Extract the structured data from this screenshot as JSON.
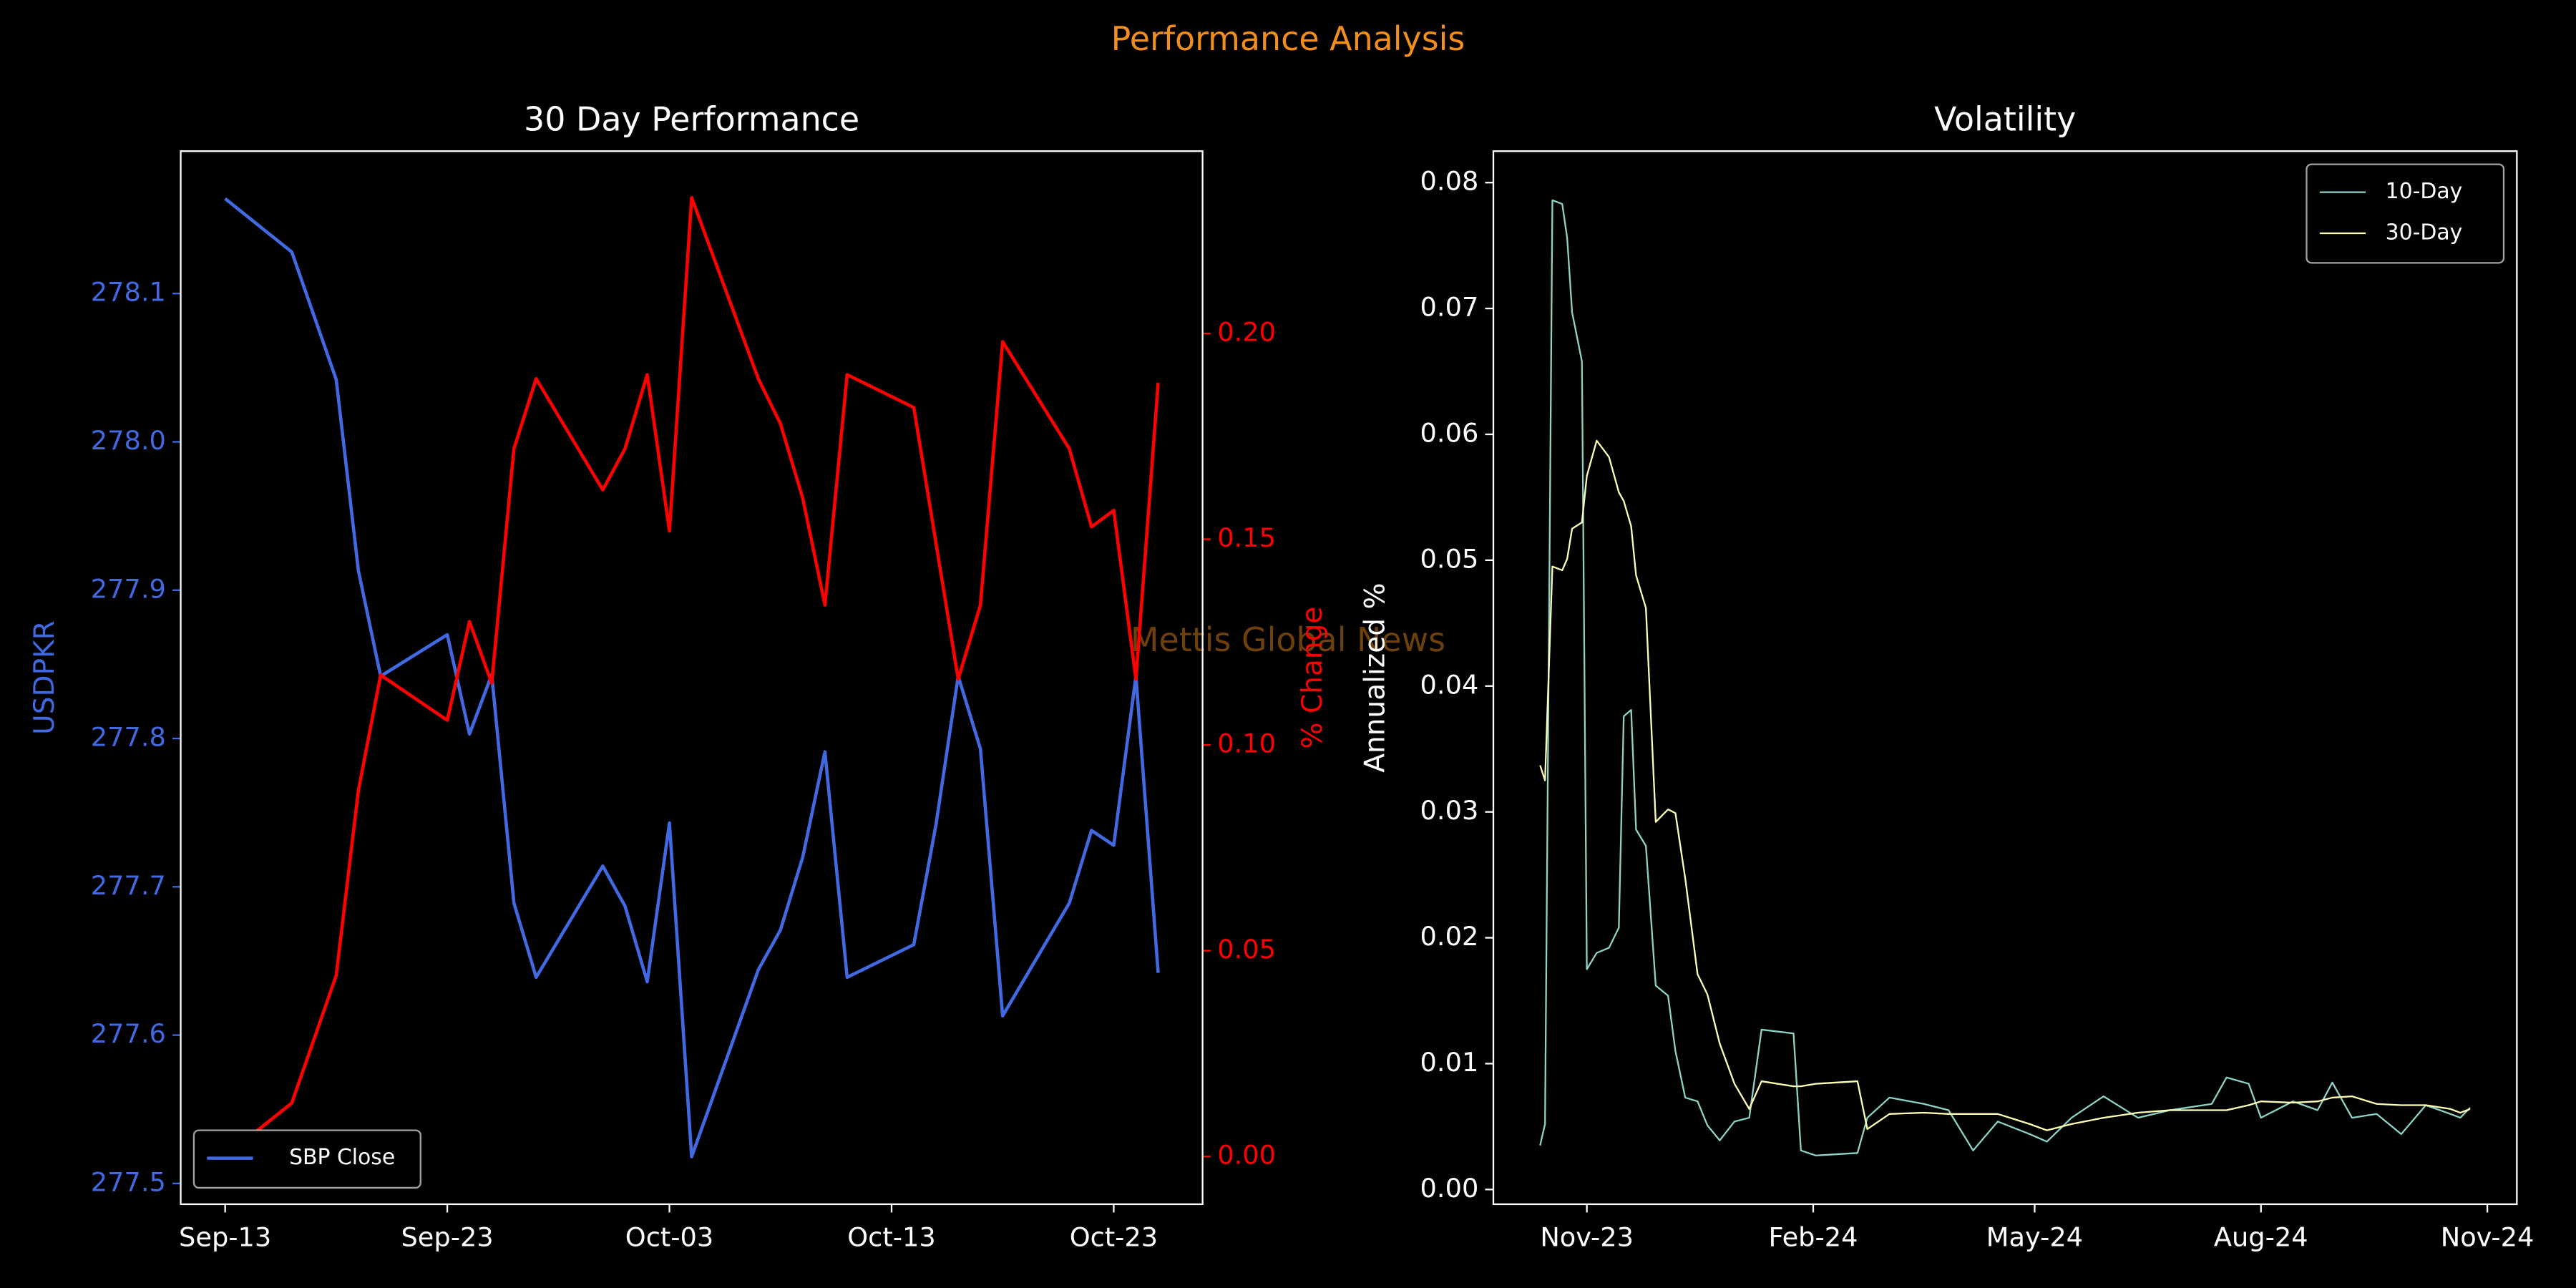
{
  "chart_data": [
    {
      "type": "line",
      "title": "30 Day Performance",
      "ylabel": "USDPKR",
      "y2label": "% Change",
      "x": [
        "Sep-13",
        "Sep-16",
        "Sep-18",
        "Sep-19",
        "Sep-20",
        "Sep-23",
        "Sep-24",
        "Sep-25",
        "Sep-26",
        "Sep-27",
        "Sep-30",
        "Oct-01",
        "Oct-02",
        "Oct-03",
        "Oct-04",
        "Oct-07",
        "Oct-08",
        "Oct-09",
        "Oct-10",
        "Oct-11",
        "Oct-14",
        "Oct-15",
        "Oct-16",
        "Oct-17",
        "Oct-18",
        "Oct-21",
        "Oct-22",
        "Oct-23",
        "Oct-24",
        "Oct-25"
      ],
      "series": [
        {
          "name": "SBP Close",
          "color": "#4169e1",
          "values": [
            278.164,
            278.128,
            278.042,
            277.913,
            277.842,
            277.87,
            277.803,
            277.843,
            277.689,
            277.639,
            277.714,
            277.687,
            277.636,
            277.743,
            277.518,
            277.644,
            277.671,
            277.72,
            277.791,
            277.639,
            277.661,
            277.742,
            277.842,
            277.793,
            277.613,
            277.689,
            277.738,
            277.728,
            277.842,
            277.642
          ]
        },
        {
          "color": "#ff0000",
          "axis": "y2",
          "values": [
            0.0,
            0.013,
            0.044,
            0.089,
            0.117,
            0.106,
            0.13,
            0.115,
            0.172,
            0.189,
            0.162,
            0.172,
            0.19,
            0.152,
            0.233,
            0.189,
            0.178,
            0.16,
            0.134,
            0.19,
            0.182,
            0.149,
            0.116,
            0.134,
            0.198,
            0.172,
            0.153,
            0.157,
            0.116,
            0.188
          ]
        }
      ],
      "xlim": [
        "Sep-11",
        "Oct-27"
      ],
      "xticks": [
        "Sep-13",
        "Sep-23",
        "Oct-03",
        "Oct-13",
        "Oct-23"
      ],
      "ylim": [
        277.486,
        278.196
      ],
      "yticks": [
        277.5,
        277.6,
        277.7,
        277.8,
        277.9,
        {
          "value": 278,
          "label": "278.0"
        },
        278.1
      ],
      "y2lim": [
        -0.0116,
        0.2443
      ],
      "y2ticks": [
        {
          "value": 0,
          "label": "0.00"
        },
        {
          "value": 0.05,
          "label": "0.05"
        },
        {
          "value": 0.1,
          "label": "0.10"
        },
        {
          "value": 0.15,
          "label": "0.15"
        },
        {
          "value": 0.2,
          "label": "0.20"
        }
      ],
      "legend": "lower left",
      "grid": false,
      "suptitle": "Performance Analysis",
      "watermark": "Mettis Global News"
    },
    {
      "type": "line",
      "title": "Volatility",
      "ylabel": "Annualized %",
      "x": [
        "2023-10-13",
        "2023-10-15",
        "2023-10-18",
        "2023-10-22",
        "2023-10-24",
        "2023-10-26",
        "2023-10-30",
        "2023-11-01",
        "2023-11-05",
        "2023-11-10",
        "2023-11-14",
        "2023-11-16",
        "2023-11-19",
        "2023-11-21",
        "2023-11-25",
        "2023-11-29",
        "2023-12-04",
        "2023-12-07",
        "2023-12-11",
        "2023-12-16",
        "2023-12-20",
        "2023-12-25",
        "2023-12-31",
        "2024-01-06",
        "2024-01-11",
        "2024-01-24",
        "2024-01-27",
        "2024-02-02",
        "2024-02-19",
        "2024-02-23",
        "2024-03-03",
        "2024-03-17",
        "2024-03-27",
        "2024-04-06",
        "2024-04-16",
        "2024-04-29",
        "2024-05-06",
        "2024-05-16",
        "2024-05-29",
        "2024-06-12",
        "2024-06-25",
        "2024-07-12",
        "2024-07-18",
        "2024-07-27",
        "2024-08-01",
        "2024-08-14",
        "2024-08-24",
        "2024-08-30",
        "2024-09-07",
        "2024-09-17",
        "2024-09-27",
        "2024-10-07",
        "2024-10-17",
        "2024-10-21",
        "2024-10-25"
      ],
      "series": [
        {
          "name": "10-Day",
          "color": "#8dd3c7",
          "values": [
            0.0035,
            0.0052,
            0.0786,
            0.0783,
            0.0756,
            0.0697,
            0.0658,
            0.0175,
            0.0188,
            0.0192,
            0.0208,
            0.0376,
            0.0381,
            0.0286,
            0.0273,
            0.0162,
            0.0154,
            0.011,
            0.0073,
            0.007,
            0.0051,
            0.0039,
            0.0054,
            0.0057,
            0.0127,
            0.0124,
            0.0031,
            0.0027,
            0.0029,
            0.0057,
            0.0073,
            0.0068,
            0.0063,
            0.0031,
            0.0054,
            0.0044,
            0.0038,
            0.0057,
            0.0074,
            0.0057,
            0.0063,
            0.0068,
            0.0089,
            0.0084,
            0.0057,
            0.007,
            0.0063,
            0.0085,
            0.0057,
            0.006,
            0.0044,
            0.0067,
            0.006,
            0.0057,
            0.0065
          ]
        },
        {
          "name": "30-Day",
          "color": "#feffb3",
          "values": [
            0.0337,
            0.0325,
            0.0495,
            0.0492,
            0.0501,
            0.0525,
            0.053,
            0.0567,
            0.0595,
            0.0582,
            0.0554,
            0.0547,
            0.0527,
            0.0488,
            0.0462,
            0.0292,
            0.0302,
            0.0299,
            0.0247,
            0.0171,
            0.0155,
            0.0116,
            0.0084,
            0.0064,
            0.0086,
            0.0082,
            0.0082,
            0.0084,
            0.0086,
            0.0048,
            0.006,
            0.0061,
            0.006,
            0.006,
            0.006,
            0.0052,
            0.0047,
            0.0052,
            0.0057,
            0.0061,
            0.0063,
            0.0063,
            0.0063,
            0.0067,
            0.007,
            0.0069,
            0.007,
            0.0073,
            0.0074,
            0.0068,
            0.0067,
            0.0067,
            0.0064,
            0.0061,
            0.0064
          ]
        }
      ],
      "xlim": [
        "2023-09-24",
        "2024-11-13"
      ],
      "xticks": [
        {
          "value": "2023-11",
          "label": "Nov-23"
        },
        {
          "value": "2024-02",
          "label": "Feb-24"
        },
        {
          "value": "2024-05",
          "label": "May-24"
        },
        {
          "value": "2024-08",
          "label": "Aug-24"
        },
        {
          "value": "2024-11",
          "label": "Nov-24"
        }
      ],
      "ylim": [
        -0.00117,
        0.0825
      ],
      "yticks": [
        {
          "value": 0,
          "label": "0.00"
        },
        {
          "value": 0.01,
          "label": "0.01"
        },
        {
          "value": 0.02,
          "label": "0.02"
        },
        {
          "value": 0.03,
          "label": "0.03"
        },
        {
          "value": 0.04,
          "label": "0.04"
        },
        {
          "value": 0.05,
          "label": "0.05"
        },
        {
          "value": 0.06,
          "label": "0.06"
        },
        {
          "value": 0.07,
          "label": "0.07"
        },
        {
          "value": 0.08,
          "label": "0.08"
        }
      ],
      "legend": "upper right",
      "grid": false
    }
  ]
}
